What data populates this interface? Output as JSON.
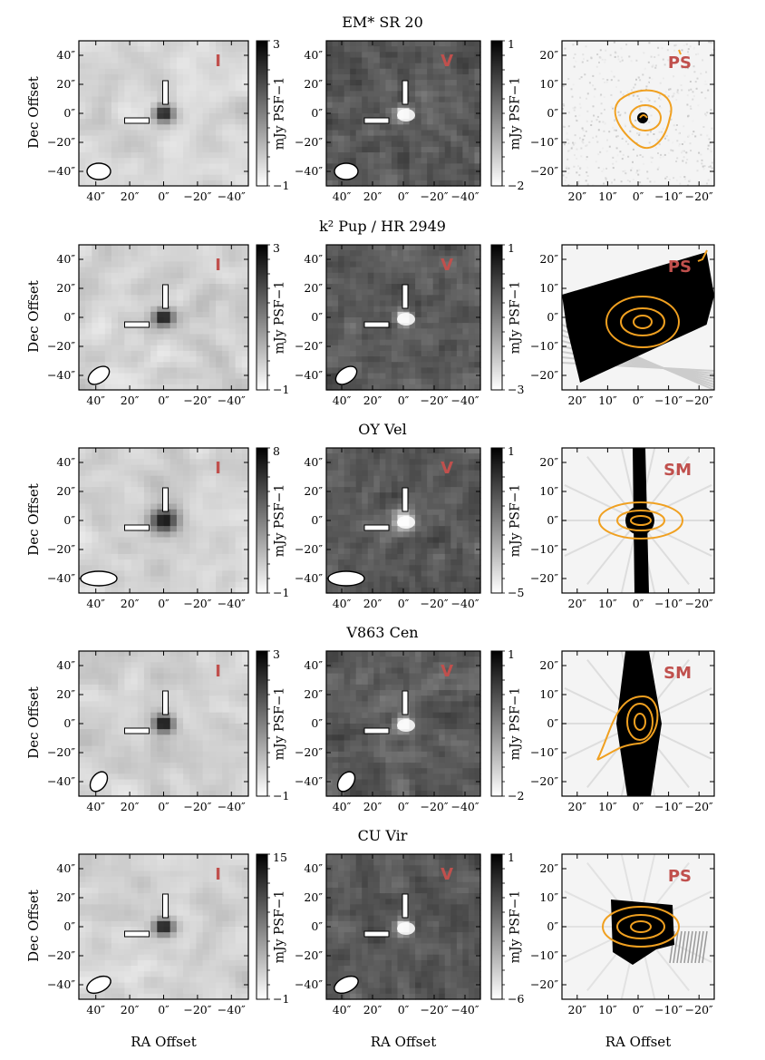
{
  "figure": {
    "ylabel": "Dec Offset",
    "xlabel": "RA Offset",
    "colorbar_label": "mJy PSF−1",
    "colors": {
      "contour": "#f0a020",
      "tag": "#c0504d"
    }
  },
  "chart_data": [
    {
      "type": "heatmap",
      "title": "EM* SR 20",
      "radio_axes": {
        "xticks": [
          "40″",
          "20″",
          "0″",
          "−20″",
          "−40″"
        ],
        "yticks": [
          "40″",
          "20″",
          "0″",
          "−20″",
          "−40″"
        ]
      },
      "optical_axes": {
        "xticks": [
          "20″",
          "10″",
          "0″",
          "−10″",
          "−20″"
        ],
        "yticks": [
          "20″",
          "10″",
          "0″",
          "−10″",
          "−20″"
        ]
      },
      "stokes_I": {
        "tag": "I",
        "colorbar": {
          "max": "3",
          "min": "−1",
          "vmax": 3,
          "vmin": -1
        }
      },
      "stokes_V": {
        "tag": "V",
        "colorbar": {
          "max": "1",
          "min": "−2",
          "vmax": 1,
          "vmin": -2
        }
      },
      "optical": {
        "tag": "PS"
      }
    },
    {
      "type": "heatmap",
      "title": "k² Pup / HR 2949",
      "radio_axes": {
        "xticks": [
          "40″",
          "20″",
          "0″",
          "−20″",
          "−40″"
        ],
        "yticks": [
          "40″",
          "20″",
          "0″",
          "−20″",
          "−40″"
        ]
      },
      "optical_axes": {
        "xticks": [
          "20″",
          "10″",
          "0″",
          "−10″",
          "−20″"
        ],
        "yticks": [
          "20″",
          "10″",
          "0″",
          "−10″",
          "−20″"
        ]
      },
      "stokes_I": {
        "tag": "I",
        "colorbar": {
          "max": "3",
          "min": "−1",
          "vmax": 3,
          "vmin": -1
        }
      },
      "stokes_V": {
        "tag": "V",
        "colorbar": {
          "max": "1",
          "min": "−3",
          "vmax": 1,
          "vmin": -3
        }
      },
      "optical": {
        "tag": "PS"
      }
    },
    {
      "type": "heatmap",
      "title": "OY Vel",
      "radio_axes": {
        "xticks": [
          "40″",
          "20″",
          "0″",
          "−20″",
          "−40″"
        ],
        "yticks": [
          "40″",
          "20″",
          "0″",
          "−20″",
          "−40″"
        ]
      },
      "optical_axes": {
        "xticks": [
          "20″",
          "10″",
          "0″",
          "−10″",
          "−20″"
        ],
        "yticks": [
          "20″",
          "10″",
          "0″",
          "−10″",
          "−20″"
        ]
      },
      "stokes_I": {
        "tag": "I",
        "colorbar": {
          "max": "8",
          "min": "−1",
          "vmax": 8,
          "vmin": -1
        }
      },
      "stokes_V": {
        "tag": "V",
        "colorbar": {
          "max": "1",
          "min": "−5",
          "vmax": 1,
          "vmin": -5
        }
      },
      "optical": {
        "tag": "SM"
      }
    },
    {
      "type": "heatmap",
      "title": "V863 Cen",
      "radio_axes": {
        "xticks": [
          "40″",
          "20″",
          "0″",
          "−20″",
          "−40″"
        ],
        "yticks": [
          "40″",
          "20″",
          "0″",
          "−20″",
          "−40″"
        ]
      },
      "optical_axes": {
        "xticks": [
          "20″",
          "10″",
          "0″",
          "−10″",
          "−20″"
        ],
        "yticks": [
          "20″",
          "10″",
          "0″",
          "−10″",
          "−20″"
        ]
      },
      "stokes_I": {
        "tag": "I",
        "colorbar": {
          "max": "3",
          "min": "−1",
          "vmax": 3,
          "vmin": -1
        }
      },
      "stokes_V": {
        "tag": "V",
        "colorbar": {
          "max": "1",
          "min": "−2",
          "vmax": 1,
          "vmin": -2
        }
      },
      "optical": {
        "tag": "SM"
      }
    },
    {
      "type": "heatmap",
      "title": "CU Vir",
      "radio_axes": {
        "xticks": [
          "40″",
          "20″",
          "0″",
          "−20″",
          "−40″"
        ],
        "yticks": [
          "40″",
          "20″",
          "0″",
          "−20″",
          "−40″"
        ]
      },
      "optical_axes": {
        "xticks": [
          "20″",
          "10″",
          "0″",
          "−10″",
          "−20″"
        ],
        "yticks": [
          "20″",
          "10″",
          "0″",
          "−10″",
          "−20″"
        ]
      },
      "stokes_I": {
        "tag": "I",
        "colorbar": {
          "max": "15",
          "min": "−1",
          "vmax": 15,
          "vmin": -1
        }
      },
      "stokes_V": {
        "tag": "V",
        "colorbar": {
          "max": "1",
          "min": "−6",
          "vmax": 1,
          "vmin": -6
        }
      },
      "optical": {
        "tag": "PS"
      }
    }
  ]
}
